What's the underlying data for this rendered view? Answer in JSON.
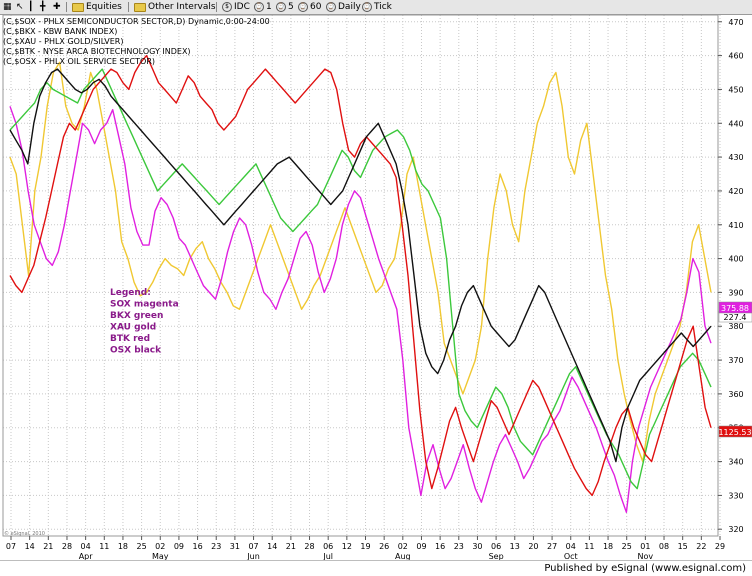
{
  "toolbar": {
    "items": [
      "Equities",
      "Other Intervals",
      "IDC",
      "1",
      "5",
      "60",
      "Daily",
      "Tick"
    ],
    "icons": [
      "grid-icon",
      "pointer-icon",
      "bar-icon",
      "crosshair-icon",
      "plus-icon"
    ]
  },
  "footer": {
    "text": "Published by eSignal (www.esignal.com)"
  },
  "watermark": "© eSignal, 2010",
  "chart_data": {
    "type": "line",
    "legend_header": [
      "(C,$SOX - PHLX SEMICONDUCTOR SECTOR,D) Dynamic,0:00-24:00",
      "(C,$BKX - KBW BANK INDEX)",
      "(C,$XAU - PHLX GOLD/SILVER)",
      "(C,$BTK - NYSE ARCA BIOTECHNOLOGY INDEX)",
      "(C,$OSX - PHLX OIL SERVICE SECTOR)"
    ],
    "annotation": [
      "Legend:",
      "SOX magenta",
      "BKX green",
      "XAU gold",
      "BTK red",
      "OSX black"
    ],
    "x_ticks": [
      "07",
      "14",
      "21",
      "28",
      "04",
      "11",
      "18",
      "25",
      "02",
      "09",
      "16",
      "23",
      "31",
      "07",
      "14",
      "21",
      "28",
      "06",
      "12",
      "19",
      "26",
      "02",
      "09",
      "16",
      "23",
      "30",
      "06",
      "13",
      "20",
      "27",
      "04",
      "11",
      "18",
      "25",
      "01",
      "08",
      "15",
      "22",
      "29"
    ],
    "months": [
      "Apr",
      "May",
      "Jun",
      "Jul",
      "Aug",
      "Sep",
      "Oct",
      "Nov"
    ],
    "y_ticks": [
      320,
      330,
      340,
      350,
      360,
      370,
      380,
      390,
      400,
      410,
      420,
      430,
      440,
      450,
      460,
      470
    ],
    "ylim": [
      318,
      472
    ],
    "last_values": [
      {
        "label": "227.4",
        "bg": "#ffffff",
        "fg": "#000000"
      },
      {
        "label": "375.88",
        "bg": "#e020e0",
        "fg": "#ffffff"
      },
      {
        "label": "1125.53",
        "bg": "#e01010",
        "fg": "#ffffff"
      }
    ],
    "series": [
      {
        "color": "#f0c832",
        "values": [
          430,
          425,
          410,
          395,
          420,
          430,
          445,
          455,
          458,
          445,
          440,
          438,
          445,
          455,
          450,
          440,
          430,
          420,
          405,
          400,
          393,
          389,
          390,
          393,
          397,
          400,
          398,
          397,
          395,
          400,
          403,
          405,
          400,
          397,
          393,
          390,
          386,
          385,
          390,
          395,
          400,
          405,
          410,
          405,
          400,
          395,
          390,
          385,
          388,
          392,
          395,
          400,
          405,
          410,
          415,
          410,
          405,
          400,
          395,
          390,
          392,
          397,
          400,
          410,
          425,
          430,
          420,
          410,
          400,
          390,
          375,
          370,
          365,
          360,
          365,
          370,
          380,
          400,
          415,
          425,
          420,
          410,
          405,
          420,
          430,
          440,
          445,
          452,
          455,
          445,
          430,
          425,
          435,
          440,
          425,
          410,
          395,
          385,
          370,
          360,
          352,
          345,
          340,
          352,
          360,
          365,
          370,
          375,
          380,
          390,
          405,
          410,
          400,
          390
        ]
      },
      {
        "color": "#e020e0",
        "values": [
          445,
          440,
          432,
          420,
          410,
          405,
          400,
          398,
          402,
          410,
          420,
          430,
          440,
          438,
          434,
          438,
          440,
          444,
          436,
          428,
          415,
          408,
          404,
          404,
          414,
          418,
          416,
          412,
          406,
          404,
          400,
          396,
          392,
          390,
          388,
          394,
          402,
          408,
          412,
          410,
          404,
          396,
          390,
          388,
          385,
          390,
          394,
          400,
          406,
          408,
          404,
          396,
          390,
          394,
          400,
          410,
          416,
          420,
          418,
          412,
          406,
          400,
          395,
          390,
          385,
          370,
          350,
          340,
          330,
          340,
          345,
          338,
          332,
          335,
          340,
          345,
          338,
          332,
          328,
          334,
          340,
          345,
          348,
          344,
          340,
          335,
          338,
          342,
          346,
          348,
          352,
          355,
          360,
          365,
          362,
          358,
          354,
          350,
          345,
          340,
          336,
          330,
          325,
          340,
          350,
          356,
          362,
          366,
          370,
          374,
          378,
          382,
          390,
          400,
          396,
          380,
          375
        ]
      },
      {
        "color": "#3cc83c",
        "values": [
          438,
          440,
          442,
          444,
          446,
          450,
          452,
          450,
          449,
          448,
          447,
          446,
          450,
          452,
          454,
          456,
          452,
          448,
          444,
          440,
          436,
          432,
          428,
          424,
          420,
          422,
          424,
          426,
          428,
          426,
          424,
          422,
          420,
          418,
          416,
          418,
          420,
          422,
          424,
          426,
          428,
          424,
          420,
          416,
          412,
          410,
          408,
          410,
          412,
          414,
          416,
          420,
          424,
          428,
          432,
          430,
          426,
          424,
          428,
          432,
          434,
          436,
          437,
          438,
          436,
          432,
          426,
          422,
          420,
          416,
          412,
          400,
          380,
          360,
          355,
          352,
          350,
          354,
          358,
          362,
          360,
          356,
          350,
          346,
          344,
          342,
          346,
          350,
          354,
          358,
          362,
          366,
          368,
          364,
          360,
          356,
          352,
          348,
          345,
          342,
          338,
          334,
          332,
          340,
          348,
          352,
          356,
          360,
          364,
          368,
          370,
          372,
          370,
          366,
          362
        ]
      },
      {
        "color": "#e01010",
        "values": [
          395,
          392,
          390,
          394,
          398,
          405,
          412,
          420,
          428,
          436,
          440,
          438,
          442,
          446,
          450,
          452,
          454,
          456,
          455,
          452,
          450,
          455,
          458,
          460,
          456,
          452,
          450,
          448,
          446,
          450,
          454,
          452,
          448,
          446,
          444,
          440,
          438,
          440,
          442,
          446,
          450,
          452,
          454,
          456,
          454,
          452,
          450,
          448,
          446,
          448,
          450,
          452,
          454,
          456,
          455,
          450,
          440,
          432,
          430,
          434,
          436,
          434,
          432,
          430,
          428,
          424,
          410,
          395,
          375,
          355,
          340,
          332,
          338,
          345,
          352,
          356,
          350,
          345,
          340,
          346,
          352,
          358,
          356,
          352,
          348,
          352,
          356,
          360,
          364,
          362,
          358,
          354,
          350,
          346,
          342,
          338,
          335,
          332,
          330,
          334,
          340,
          345,
          350,
          354,
          356,
          350,
          346,
          342,
          340,
          346,
          352,
          358,
          364,
          370,
          376,
          380,
          368,
          356,
          350
        ]
      },
      {
        "color": "#111111",
        "values": [
          438,
          435,
          432,
          428,
          440,
          448,
          452,
          455,
          456,
          454,
          452,
          450,
          449,
          450,
          452,
          453,
          451,
          448,
          446,
          444,
          442,
          440,
          438,
          436,
          434,
          432,
          430,
          428,
          426,
          424,
          422,
          420,
          418,
          416,
          414,
          412,
          410,
          412,
          414,
          416,
          418,
          420,
          422,
          424,
          426,
          428,
          429,
          430,
          428,
          426,
          424,
          422,
          420,
          418,
          416,
          418,
          420,
          424,
          428,
          432,
          436,
          438,
          440,
          436,
          432,
          428,
          420,
          410,
          395,
          380,
          372,
          368,
          366,
          370,
          376,
          380,
          386,
          390,
          392,
          388,
          384,
          380,
          378,
          376,
          374,
          376,
          380,
          384,
          388,
          392,
          390,
          386,
          382,
          378,
          374,
          370,
          366,
          362,
          358,
          354,
          350,
          346,
          340,
          350,
          356,
          360,
          364,
          366,
          368,
          370,
          372,
          374,
          376,
          378,
          376,
          374,
          376,
          378,
          380
        ]
      }
    ]
  }
}
